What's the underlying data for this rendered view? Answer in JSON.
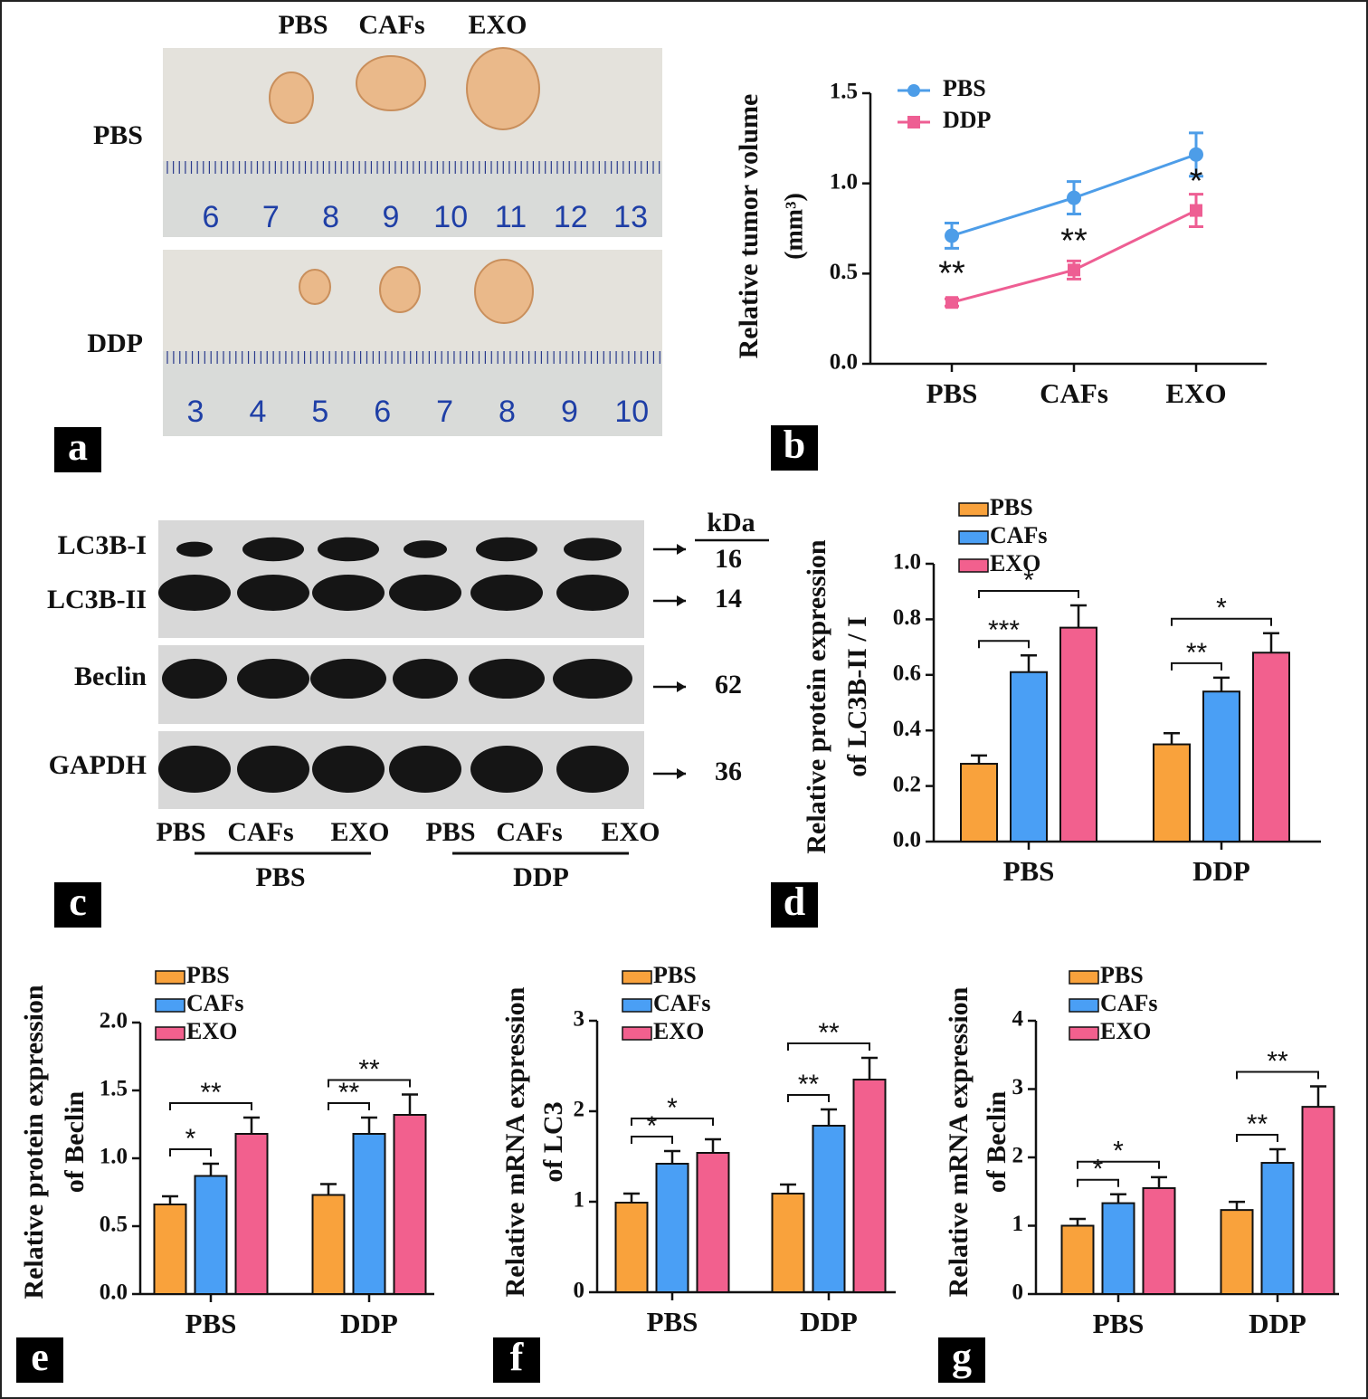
{
  "photo": {
    "panel_label": "a",
    "column_labels": [
      "PBS",
      "CAFs",
      "EXO"
    ],
    "row_labels": [
      "PBS",
      "DDP"
    ],
    "ruler_labels": [
      [
        6,
        7,
        8,
        9,
        10,
        11,
        12,
        13
      ],
      [
        3,
        4,
        5,
        6,
        7,
        8,
        9,
        10
      ]
    ]
  },
  "blot": {
    "panel_label": "c",
    "band_labels": [
      "LC3B-I",
      "LC3B-II",
      "Beclin",
      "GAPDH"
    ],
    "unit": "kDa",
    "sizes": [
      16,
      14,
      62,
      36
    ],
    "lane_labels": [
      "PBS",
      "CAFs",
      "EXO",
      "PBS",
      "CAFs",
      "EXO"
    ],
    "group_labels": [
      "PBS",
      "DDP"
    ]
  },
  "chart_data": [
    {
      "type": "line",
      "panel_label": "b",
      "y_label": [
        "Relative tumor volume"
      ],
      "y_unit": "(mm³)",
      "categories": [
        "PBS",
        "CAFs",
        "EXO"
      ],
      "ylim": [
        0,
        1.5
      ],
      "yticks": [
        {
          "value": 0,
          "label": "0.0"
        },
        0.5,
        {
          "value": 1,
          "label": "1.0"
        },
        1.5
      ],
      "series": [
        {
          "name": "PBS",
          "color": "#4d9de8",
          "values": [
            0.71,
            0.92,
            1.16
          ],
          "errors": [
            0.07,
            0.09,
            0.12
          ]
        },
        {
          "name": "DDP",
          "color": "#ee5e93",
          "values": [
            0.34,
            0.52,
            0.85
          ],
          "errors": [
            0.02,
            0.05,
            0.09
          ],
          "significance": [
            "**",
            "**",
            "*"
          ]
        }
      ]
    },
    {
      "type": "bar",
      "panel_label": "d",
      "y_label": [
        "Relative protein expression",
        "of LC3B-II / I"
      ],
      "categories": [
        "PBS",
        "DDP"
      ],
      "ylim": [
        0,
        1
      ],
      "yticks": [
        {
          "value": 0,
          "label": "0.0"
        },
        0.2,
        0.4,
        0.6,
        0.8,
        {
          "value": 1,
          "label": "1.0"
        }
      ],
      "series": [
        {
          "name": "PBS",
          "color": "#f9a23c",
          "values": [
            0.28,
            0.35
          ],
          "errors": [
            0.03,
            0.04
          ]
        },
        {
          "name": "CAFs",
          "color": "#4a9ff5",
          "values": [
            0.61,
            0.54
          ],
          "errors": [
            0.06,
            0.05
          ]
        },
        {
          "name": "EXO",
          "color": "#f2608e",
          "values": [
            0.77,
            0.68
          ],
          "errors": [
            0.08,
            0.07
          ]
        }
      ],
      "brackets": [
        [
          "***",
          "*"
        ],
        [
          "**",
          "*"
        ]
      ]
    },
    {
      "type": "bar",
      "panel_label": "e",
      "y_label": [
        "Relative protein expression",
        "of Beclin"
      ],
      "categories": [
        "PBS",
        "DDP"
      ],
      "ylim": [
        0,
        2
      ],
      "yticks": [
        {
          "value": 0,
          "label": "0.0"
        },
        0.5,
        {
          "value": 1,
          "label": "1.0"
        },
        1.5,
        {
          "value": 2,
          "label": "2.0"
        }
      ],
      "series": [
        {
          "name": "PBS",
          "color": "#f9a23c",
          "values": [
            0.66,
            0.73
          ],
          "errors": [
            0.06,
            0.08
          ]
        },
        {
          "name": "CAFs",
          "color": "#4a9ff5",
          "values": [
            0.87,
            1.18
          ],
          "errors": [
            0.09,
            0.12
          ]
        },
        {
          "name": "EXO",
          "color": "#f2608e",
          "values": [
            1.18,
            1.32
          ],
          "errors": [
            0.12,
            0.15
          ]
        }
      ],
      "brackets": [
        [
          "*",
          "**"
        ],
        [
          "**",
          "**"
        ]
      ]
    },
    {
      "type": "bar",
      "panel_label": "f",
      "y_label": [
        "Relative mRNA expression",
        "of LC3"
      ],
      "categories": [
        "PBS",
        "DDP"
      ],
      "ylim": [
        0,
        3
      ],
      "yticks": [
        0,
        1,
        2,
        3
      ],
      "series": [
        {
          "name": "PBS",
          "color": "#f9a23c",
          "values": [
            0.99,
            1.09
          ],
          "errors": [
            0.1,
            0.1
          ]
        },
        {
          "name": "CAFs",
          "color": "#4a9ff5",
          "values": [
            1.42,
            1.84
          ],
          "errors": [
            0.14,
            0.18
          ]
        },
        {
          "name": "EXO",
          "color": "#f2608e",
          "values": [
            1.54,
            2.35
          ],
          "errors": [
            0.15,
            0.24
          ]
        }
      ],
      "brackets": [
        [
          "*",
          "*"
        ],
        [
          "**",
          "**"
        ]
      ]
    },
    {
      "type": "bar",
      "panel_label": "g",
      "y_label": [
        "Relative mRNA expression",
        "of Beclin"
      ],
      "categories": [
        "PBS",
        "DDP"
      ],
      "ylim": [
        0,
        4
      ],
      "yticks": [
        0,
        1,
        2,
        3,
        4
      ],
      "series": [
        {
          "name": "PBS",
          "color": "#f9a23c",
          "values": [
            1,
            1.23
          ],
          "errors": [
            0.1,
            0.12
          ]
        },
        {
          "name": "CAFs",
          "color": "#4a9ff5",
          "values": [
            1.33,
            1.92
          ],
          "errors": [
            0.13,
            0.2
          ]
        },
        {
          "name": "EXO",
          "color": "#f2608e",
          "values": [
            1.55,
            2.74
          ],
          "errors": [
            0.16,
            0.3
          ]
        }
      ],
      "brackets": [
        [
          "*",
          "*"
        ],
        [
          "**",
          "**"
        ]
      ]
    }
  ]
}
